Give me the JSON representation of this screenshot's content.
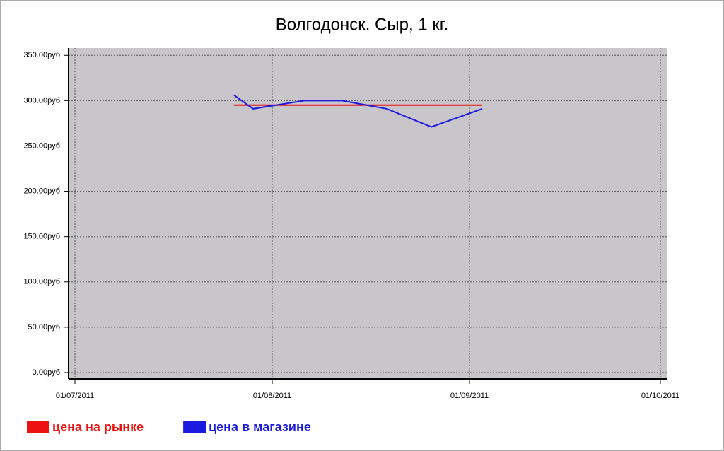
{
  "chart_data": {
    "type": "line",
    "title": "Волгодонск. Сыр, 1 кг.",
    "xlim": [
      "30/06/2011",
      "02/10/2011"
    ],
    "xticks": [
      "01/07/2011",
      "01/08/2011",
      "01/09/2011",
      "01/10/2011"
    ],
    "ylim": [
      -7,
      358
    ],
    "yticks": [
      {
        "value": 0,
        "label": "0.00руб"
      },
      {
        "value": 50,
        "label": "50.00руб"
      },
      {
        "value": 100,
        "label": "100.00руб"
      },
      {
        "value": 150,
        "label": "150.00руб"
      },
      {
        "value": 200,
        "label": "200.00руб"
      },
      {
        "value": 250,
        "label": "250.00руб"
      },
      {
        "value": 300,
        "label": "300.00руб"
      },
      {
        "value": 350,
        "label": "350.00руб"
      }
    ],
    "grid": true,
    "legend": "bottom-left",
    "series": [
      {
        "name": "цена на рынке",
        "color": "#ee1111",
        "x": [
          "26/07/2011",
          "03/09/2011"
        ],
        "values": [
          295,
          295
        ]
      },
      {
        "name": "цена в магазине",
        "color": "#1a1ae0",
        "x": [
          "26/07/2011",
          "29/07/2011",
          "06/08/2011",
          "12/08/2011",
          "19/08/2011",
          "26/08/2011",
          "03/09/2011"
        ],
        "values": [
          306,
          291,
          300,
          300,
          291,
          271,
          291
        ]
      }
    ]
  }
}
